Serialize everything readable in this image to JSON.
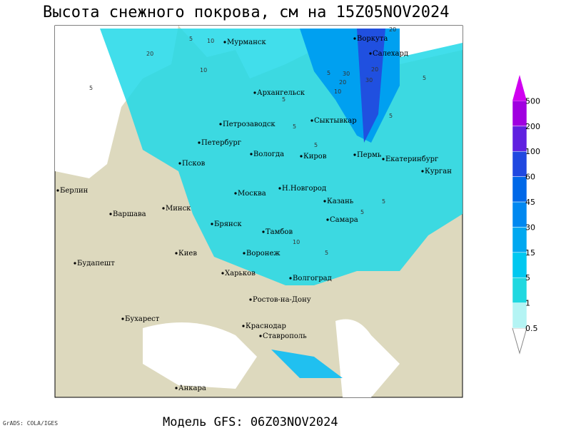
{
  "title": "Высота снежного покрова, см на 15Z05NOV2024",
  "subtitle": "Модель GFS: 06Z03NOV2024",
  "credit": "GrADS: COLA/IGES",
  "legend": {
    "labels": [
      0.5,
      1,
      5,
      15,
      30,
      45,
      60,
      100,
      200,
      500
    ]
  },
  "cities": [
    "Мурманск",
    "Воркута",
    "Салехард",
    "Архангельск",
    "Петрозаводск",
    "Сыктывкар",
    "Петербург",
    "Вологда",
    "Киров",
    "Пермь",
    "Екатеринбург",
    "Курган",
    "Псков",
    "Н.Новгород",
    "Москва",
    "Казань",
    "Берлин",
    "Варшава",
    "Минск",
    "Самара",
    "Брянск",
    "Тамбов",
    "Киев",
    "Воронеж",
    "Будапешт",
    "Харьков",
    "Волгоград",
    "Ростов-на-Дону",
    "Бухарест",
    "Краснодар",
    "Ставрополь",
    "Анкара"
  ],
  "contour_labels": [
    "5",
    "20",
    "10",
    "5",
    "20",
    "30",
    "20",
    "10",
    "10",
    "5",
    "5",
    "5",
    "5",
    "5",
    "5",
    "5",
    "10",
    "20",
    "30",
    "5",
    "5"
  ]
}
